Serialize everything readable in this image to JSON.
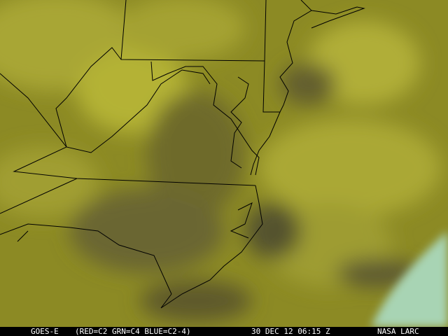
{
  "image": {
    "type": "satellite-imagery",
    "caption": {
      "satellite": "GOES-E",
      "channels": "(RED=C2 GRN=C4 BLUE=C2-4)",
      "datetime": "30 DEC 12 06:15 Z",
      "source": "NASA LARC"
    },
    "colors": {
      "cloud_yellow": "#b4b236",
      "base_olive": "#8c8a24",
      "clear_dark": "#5e5a2c",
      "cold_cloud_cyan": "#a8d4b4",
      "borders": "#000000"
    }
  }
}
